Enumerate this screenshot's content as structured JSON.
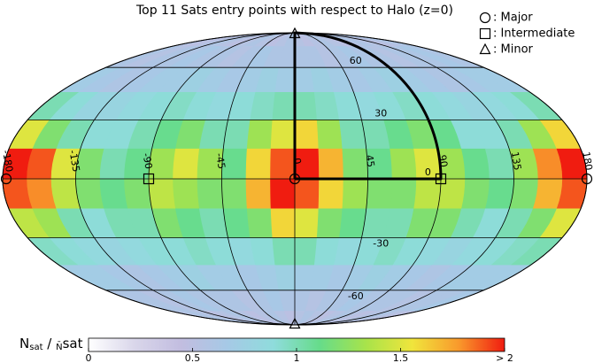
{
  "chart_data": {
    "type": "mollweide",
    "title": "Top 11 Sats entry points with respect to Halo (z=0)",
    "lat_edges": [
      90,
      75,
      60,
      45,
      30,
      15,
      0,
      -15,
      -30,
      -45,
      -60,
      -75,
      -90
    ],
    "lon_edges": [
      -180,
      -165,
      -150,
      -135,
      -120,
      -105,
      -90,
      -75,
      -60,
      -45,
      -30,
      -15,
      0,
      15,
      30,
      45,
      60,
      75,
      90,
      105,
      120,
      135,
      150,
      165,
      180
    ],
    "values": [
      [
        0.55,
        0.5,
        0.55,
        0.6,
        0.55,
        0.5,
        0.55,
        0.6,
        0.55,
        0.5,
        0.55,
        0.6,
        0.55,
        0.5,
        0.55,
        0.6,
        0.55,
        0.5,
        0.55,
        0.6,
        0.55,
        0.5,
        0.55,
        0.6
      ],
      [
        0.6,
        0.55,
        0.6,
        0.6,
        0.65,
        0.6,
        0.6,
        0.55,
        0.6,
        0.65,
        0.6,
        0.6,
        0.6,
        0.6,
        0.55,
        0.6,
        0.65,
        0.6,
        0.6,
        0.55,
        0.6,
        0.6,
        0.65,
        0.6
      ],
      [
        0.7,
        0.65,
        0.6,
        0.65,
        0.7,
        0.7,
        0.75,
        0.7,
        0.65,
        0.7,
        0.75,
        0.7,
        0.7,
        0.75,
        0.7,
        0.65,
        0.7,
        0.75,
        0.7,
        0.65,
        0.6,
        0.65,
        0.7,
        0.7
      ],
      [
        1.0,
        0.9,
        0.8,
        0.8,
        0.85,
        0.9,
        0.95,
        0.9,
        0.85,
        0.9,
        0.95,
        1.0,
        1.0,
        0.95,
        0.9,
        0.85,
        0.9,
        0.95,
        0.9,
        0.85,
        0.8,
        0.85,
        0.9,
        1.0
      ],
      [
        1.5,
        1.2,
        1.0,
        0.9,
        0.9,
        1.0,
        1.1,
        1.2,
        1.0,
        1.0,
        1.3,
        1.5,
        1.6,
        1.3,
        1.0,
        1.0,
        1.1,
        1.2,
        1.1,
        0.9,
        0.9,
        1.0,
        1.3,
        1.6
      ],
      [
        2.0,
        1.9,
        1.5,
        1.2,
        1.0,
        1.1,
        1.3,
        1.5,
        1.3,
        1.1,
        1.6,
        1.9,
        2.0,
        1.7,
        1.2,
        1.1,
        1.3,
        1.5,
        1.3,
        1.1,
        1.0,
        1.3,
        1.8,
        2.0
      ],
      [
        1.9,
        1.8,
        1.4,
        1.2,
        1.1,
        1.2,
        1.4,
        1.3,
        1.2,
        1.2,
        1.7,
        2.0,
        1.9,
        1.6,
        1.3,
        1.2,
        1.2,
        1.4,
        1.4,
        1.2,
        1.1,
        1.2,
        1.7,
        1.9
      ],
      [
        1.4,
        1.3,
        1.0,
        0.9,
        1.0,
        1.0,
        1.2,
        1.1,
        1.0,
        1.1,
        1.2,
        1.6,
        1.5,
        1.2,
        1.1,
        1.0,
        1.0,
        1.2,
        1.2,
        1.0,
        0.9,
        1.0,
        1.2,
        1.5
      ],
      [
        0.95,
        0.9,
        0.85,
        0.8,
        0.85,
        0.9,
        0.9,
        0.95,
        0.9,
        0.85,
        0.9,
        1.0,
        1.0,
        0.9,
        0.85,
        0.9,
        0.95,
        0.9,
        0.85,
        0.8,
        0.85,
        0.9,
        0.95,
        1.0
      ],
      [
        0.7,
        0.7,
        0.65,
        0.6,
        0.65,
        0.7,
        0.75,
        0.7,
        0.7,
        0.65,
        0.7,
        0.75,
        0.7,
        0.7,
        0.65,
        0.7,
        0.75,
        0.7,
        0.65,
        0.6,
        0.65,
        0.7,
        0.7,
        0.7
      ],
      [
        0.6,
        0.6,
        0.55,
        0.6,
        0.65,
        0.6,
        0.6,
        0.6,
        0.55,
        0.6,
        0.65,
        0.6,
        0.6,
        0.55,
        0.6,
        0.6,
        0.65,
        0.6,
        0.6,
        0.6,
        0.55,
        0.6,
        0.6,
        0.65
      ],
      [
        0.55,
        0.6,
        0.55,
        0.5,
        0.55,
        0.6,
        0.55,
        0.5,
        0.55,
        0.6,
        0.55,
        0.5,
        0.55,
        0.6,
        0.55,
        0.5,
        0.55,
        0.6,
        0.55,
        0.5,
        0.55,
        0.6,
        0.55,
        0.5
      ]
    ],
    "clim": [
      0,
      2
    ],
    "colormap": [
      "#ffffff",
      "#d9d6ea",
      "#c2bde0",
      "#a6c9e6",
      "#8fdcdc",
      "#66dc8a",
      "#a8e34a",
      "#f0e53c",
      "#f99a2c",
      "#f01c10"
    ],
    "meridians": [
      -180,
      -135,
      -90,
      -45,
      0,
      45,
      90,
      135,
      180
    ],
    "parallels": [
      60,
      30,
      0,
      -30,
      -60
    ],
    "grid": true,
    "legend": [
      {
        "shape": "circle",
        "label": ": Major",
        "lon": [
          0,
          -180,
          180
        ],
        "lat": [
          0,
          0,
          0
        ]
      },
      {
        "shape": "square",
        "label": ": Intermediate",
        "lon": [
          -90,
          90
        ],
        "lat": [
          0,
          0
        ]
      },
      {
        "shape": "triangle",
        "label": ": Minor",
        "lon": [
          0,
          0
        ],
        "lat": [
          90,
          -90
        ]
      }
    ],
    "colorbar": {
      "label_parts": [
        "N",
        "sat",
        " / ",
        "N̄",
        "sat"
      ],
      "ticks": [
        0,
        0.5,
        1,
        1.5,
        {
          "value": 2,
          "label": "> 2"
        }
      ]
    }
  }
}
